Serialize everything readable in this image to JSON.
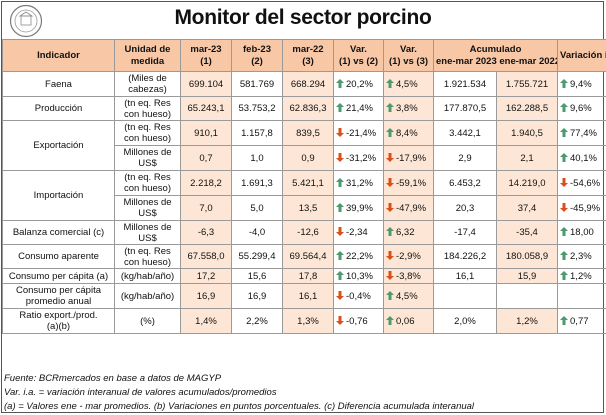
{
  "title": "Monitor del sector porcino",
  "colors": {
    "header_bg": "#f7c7a6",
    "shade_bg": "#fde6d5",
    "up_arrow": "#4e9a6c",
    "down_arrow": "#d9501b"
  },
  "header": {
    "indicador": "Indicador",
    "unidad_l1": "Unidad de",
    "unidad_l2": "medida",
    "c1_l1": "mar-23",
    "c1_l2": "(1)",
    "c2_l1": "feb-23",
    "c2_l2": "(2)",
    "c3_l1": "mar-22",
    "c3_l2": "(3)",
    "v12_l1": "Var.",
    "v12_l2": "(1) vs (2)",
    "v13_l1": "Var.",
    "v13_l2": "(1) vs (3)",
    "acum_l1": "Acumulado",
    "acum_a": "ene-mar 2023",
    "acum_b": "ene-mar 2022",
    "via": "Variación i.a."
  },
  "rows": {
    "faena": {
      "name": "Faena",
      "unit_l1": "(Miles de",
      "unit_l2": "cabezas)",
      "c1": "699.104",
      "c2": "581.769",
      "c3": "668.294",
      "v12": "20,2%",
      "v12_icon": "up-arrow-icon",
      "v13": "4,5%",
      "v13_icon": "up-arrow-icon",
      "a23": "1.921.534",
      "a22": "1.755.721",
      "via": "9,4%",
      "via_icon": "up-arrow-icon"
    },
    "produccion": {
      "name": "Producción",
      "unit_l1": "(tn eq. Res",
      "unit_l2": "con hueso)",
      "c1": "65.243,1",
      "c2": "53.753,2",
      "c3": "62.836,3",
      "v12": "21,4%",
      "v12_icon": "up-arrow-icon",
      "v13": "3,8%",
      "v13_icon": "up-arrow-icon",
      "a23": "177.870,5",
      "a22": "162.288,5",
      "via": "9,6%",
      "via_icon": "up-arrow-icon"
    },
    "export_tn": {
      "name": "Exportación",
      "unit_l1": "(tn eq. Res",
      "unit_l2": "con hueso)",
      "c1": "910,1",
      "c2": "1.157,8",
      "c3": "839,5",
      "v12": "-21,4%",
      "v12_icon": "down-arrow-icon",
      "v13": "8,4%",
      "v13_icon": "up-arrow-icon",
      "a23": "3.442,1",
      "a22": "1.940,5",
      "via": "77,4%",
      "via_icon": "up-arrow-icon"
    },
    "export_usd": {
      "unit_l1": "Millones de",
      "unit_l2": "US$",
      "c1": "0,7",
      "c2": "1,0",
      "c3": "0,9",
      "v12": "-31,2%",
      "v12_icon": "down-arrow-icon",
      "v13": "-17,9%",
      "v13_icon": "down-arrow-icon",
      "a23": "2,9",
      "a22": "2,1",
      "via": "40,1%",
      "via_icon": "up-arrow-icon"
    },
    "import_tn": {
      "name": "Importación",
      "unit_l1": "(tn eq. Res",
      "unit_l2": "con hueso)",
      "c1": "2.218,2",
      "c2": "1.691,3",
      "c3": "5.421,1",
      "v12": "31,2%",
      "v12_icon": "up-arrow-icon",
      "v13": "-59,1%",
      "v13_icon": "down-arrow-icon",
      "a23": "6.453,2",
      "a22": "14.219,0",
      "via": "-54,6%",
      "via_icon": "down-arrow-icon"
    },
    "import_usd": {
      "unit_l1": "Millones de",
      "unit_l2": "US$",
      "c1": "7,0",
      "c2": "5,0",
      "c3": "13,5",
      "v12": "39,9%",
      "v12_icon": "up-arrow-icon",
      "v13": "-47,9%",
      "v13_icon": "down-arrow-icon",
      "a23": "20,3",
      "a22": "37,4",
      "via": "-45,9%",
      "via_icon": "down-arrow-icon"
    },
    "balanza": {
      "name": "Balanza comercial (c)",
      "unit_l1": "Millones de",
      "unit_l2": "US$",
      "c1": "-6,3",
      "c2": "-4,0",
      "c3": "-12,6",
      "v12": "-2,34",
      "v12_icon": "down-arrow-icon",
      "v13": "6,32",
      "v13_icon": "up-arrow-icon",
      "a23": "-17,4",
      "a22": "-35,4",
      "via": "18,00",
      "via_icon": "up-arrow-icon"
    },
    "consumo": {
      "name": "Consumo aparente",
      "unit_l1": "(tn eq. Res",
      "unit_l2": "con hueso)",
      "c1": "67.558,0",
      "c2": "55.299,4",
      "c3": "69.564,4",
      "v12": "22,2%",
      "v12_icon": "up-arrow-icon",
      "v13": "-2,9%",
      "v13_icon": "down-arrow-icon",
      "a23": "184.226,2",
      "a22": "180.058,9",
      "via": "2,3%",
      "via_icon": "up-arrow-icon"
    },
    "percapita": {
      "name": "Consumo per cápita (a)",
      "unit": "(kg/hab/año)",
      "c1": "17,2",
      "c2": "15,6",
      "c3": "17,8",
      "v12": "10,3%",
      "v12_icon": "up-arrow-icon",
      "v13": "-3,8%",
      "v13_icon": "down-arrow-icon",
      "a23": "16,1",
      "a22": "15,9",
      "via": "1,2%",
      "via_icon": "up-arrow-icon"
    },
    "prom_anual": {
      "name_l1": "Consumo per cápita",
      "name_l2": "promedio anual",
      "unit": "(kg/hab/año)",
      "c1": "16,9",
      "c2": "16,9",
      "c3": "16,1",
      "v12": "-0,4%",
      "v12_icon": "down-arrow-icon",
      "v13": "4,5%",
      "v13_icon": "up-arrow-icon"
    },
    "ratio": {
      "name_l1": "Ratio export./prod.",
      "name_l2": "(a)(b)",
      "unit": "(%)",
      "c1": "1,4%",
      "c2": "2,2%",
      "c3": "1,3%",
      "v12": "-0,76",
      "v12_icon": "down-arrow-icon",
      "v13": "0,06",
      "v13_icon": "up-arrow-icon",
      "a23": "2,0%",
      "a22": "1,2%",
      "via": "0,77",
      "via_icon": "up-arrow-icon"
    }
  },
  "footnotes": {
    "fuente": "Fuente: BCRmercados en base a datos de MAGYP",
    "var": "Var. i.a. = variación interanual de valores acumulados/promedios",
    "notas": "(a) = Valores ene - mar promedios. (b) Variaciones en puntos porcentuales. (c) Diferencia acumulada interanual"
  }
}
